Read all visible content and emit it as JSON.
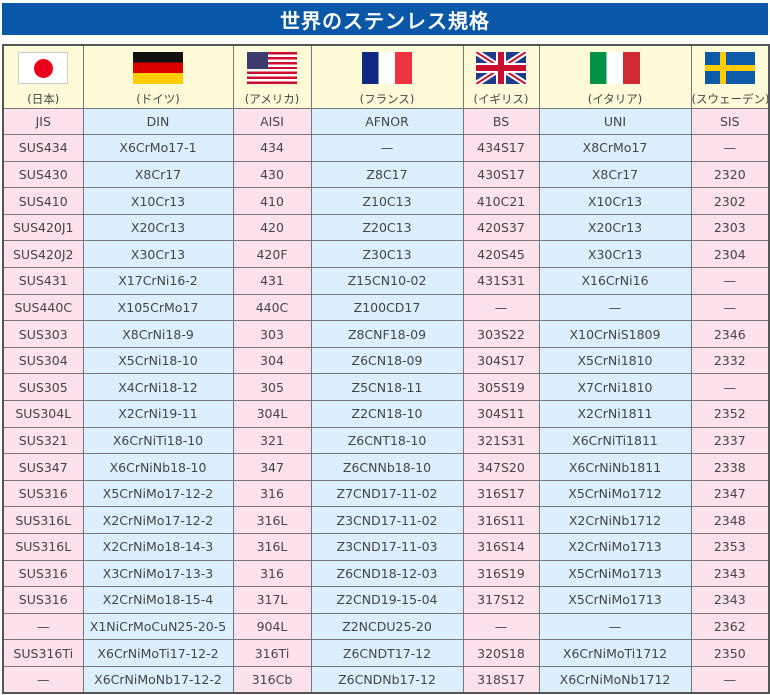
{
  "title": "世界のステンレス規格",
  "countries": [
    {
      "name": "(日本)",
      "flag": "japan-flag",
      "standard": "JIS"
    },
    {
      "name": "(ドイツ)",
      "flag": "germany-flag",
      "standard": "DIN"
    },
    {
      "name": "(アメリカ)",
      "flag": "usa-flag",
      "standard": "AISI"
    },
    {
      "name": "(フランス)",
      "flag": "france-flag",
      "standard": "AFNOR"
    },
    {
      "name": "(イギリス)",
      "flag": "uk-flag",
      "standard": "BS"
    },
    {
      "name": "(イタリア)",
      "flag": "italy-flag",
      "standard": "UNI"
    },
    {
      "name": "(スウェーデン)",
      "flag": "sweden-flag",
      "standard": "SIS"
    }
  ],
  "colors": {
    "title_bg": "#0a57a8",
    "header_bg": "#fffad8",
    "pink": "#fde2ee",
    "blue": "#dcefff"
  },
  "rows": [
    [
      "SUS434",
      "X6CrMo17-1",
      "434",
      "—",
      "434S17",
      "X8CrMo17",
      "—"
    ],
    [
      "SUS430",
      "X8Cr17",
      "430",
      "Z8C17",
      "430S17",
      "X8Cr17",
      "2320"
    ],
    [
      "SUS410",
      "X10Cr13",
      "410",
      "Z10C13",
      "410C21",
      "X10Cr13",
      "2302"
    ],
    [
      "SUS420J1",
      "X20Cr13",
      "420",
      "Z20C13",
      "420S37",
      "X20Cr13",
      "2303"
    ],
    [
      "SUS420J2",
      "X30Cr13",
      "420F",
      "Z30C13",
      "420S45",
      "X30Cr13",
      "2304"
    ],
    [
      "SUS431",
      "X17CrNi16-2",
      "431",
      "Z15CN10-02",
      "431S31",
      "X16CrNi16",
      "—"
    ],
    [
      "SUS440C",
      "X105CrMo17",
      "440C",
      "Z100CD17",
      "—",
      "—",
      "—"
    ],
    [
      "SUS303",
      "X8CrNi18-9",
      "303",
      "Z8CNF18-09",
      "303S22",
      "X10CrNiS1809",
      "2346"
    ],
    [
      "SUS304",
      "X5CrNi18-10",
      "304",
      "Z6CN18-09",
      "304S17",
      "X5CrNi1810",
      "2332"
    ],
    [
      "SUS305",
      "X4CrNi18-12",
      "305",
      "Z5CN18-11",
      "305S19",
      "X7CrNi1810",
      "—"
    ],
    [
      "SUS304L",
      "X2CrNi19-11",
      "304L",
      "Z2CN18-10",
      "304S11",
      "X2CrNi1811",
      "2352"
    ],
    [
      "SUS321",
      "X6CrNiTi18-10",
      "321",
      "Z6CNT18-10",
      "321S31",
      "X6CrNiTi1811",
      "2337"
    ],
    [
      "SUS347",
      "X6CrNiNb18-10",
      "347",
      "Z6CNNb18-10",
      "347S20",
      "X6CrNiNb1811",
      "2338"
    ],
    [
      "SUS316",
      "X5CrNiMo17-12-2",
      "316",
      "Z7CND17-11-02",
      "316S17",
      "X5CrNiMo1712",
      "2347"
    ],
    [
      "SUS316L",
      "X2CrNiMo17-12-2",
      "316L",
      "Z3CND17-11-02",
      "316S11",
      "X2CrNiNb1712",
      "2348"
    ],
    [
      "SUS316L",
      "X2CrNiMo18-14-3",
      "316L",
      "Z3CND17-11-03",
      "316S14",
      "X2CrNiMo1713",
      "2353"
    ],
    [
      "SUS316",
      "X3CrNiMo17-13-3",
      "316",
      "Z6CND18-12-03",
      "316S19",
      "X5CrNiMo1713",
      "2343"
    ],
    [
      "SUS316",
      "X2CrNiMo18-15-4",
      "317L",
      "Z2CND19-15-04",
      "317S12",
      "X5CrNiMo1713",
      "2343"
    ],
    [
      "—",
      "X1NiCrMoCuN25-20-5",
      "904L",
      "Z2NCDU25-20",
      "—",
      "—",
      "2362"
    ],
    [
      "SUS316Ti",
      "X6CrNiMoTi17-12-2",
      "316Ti",
      "Z6CNDT17-12",
      "320S18",
      "X6CrNiMoTi1712",
      "2350"
    ],
    [
      "—",
      "X6CrNiMoNb17-12-2",
      "316Cb",
      "Z6CNDNb17-12",
      "318S17",
      "X6CrNiMoNb1712",
      "—"
    ]
  ]
}
